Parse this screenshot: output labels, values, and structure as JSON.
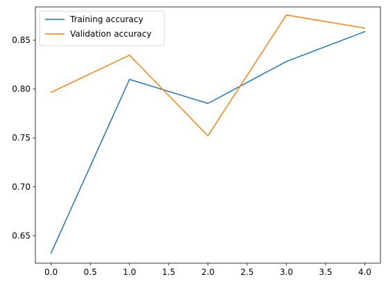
{
  "chart_data": {
    "type": "line",
    "title": "",
    "xlabel": "",
    "ylabel": "",
    "x": [
      0,
      1,
      2,
      3,
      4
    ],
    "xlim": [
      -0.2,
      4.2
    ],
    "ylim": [
      0.622,
      0.884
    ],
    "xticks": [
      0.0,
      0.5,
      1.0,
      1.5,
      2.0,
      2.5,
      3.0,
      3.5,
      4.0
    ],
    "yticks": [
      0.65,
      0.7,
      0.75,
      0.8,
      0.85
    ],
    "xtick_labels": [
      "0.0",
      "0.5",
      "1.0",
      "1.5",
      "2.0",
      "2.5",
      "3.0",
      "3.5",
      "4.0"
    ],
    "ytick_labels": [
      "0.65",
      "0.70",
      "0.75",
      "0.80",
      "0.85"
    ],
    "grid": false,
    "legend_position": "top-left",
    "series": [
      {
        "name": "Training accuracy",
        "color": "#1f77b4",
        "values": [
          0.6323,
          0.8099,
          0.7853,
          0.8282,
          0.8587
        ]
      },
      {
        "name": "Validation accuracy",
        "color": "#ff7f0e",
        "values": [
          0.7967,
          0.8347,
          0.7522,
          0.8758,
          0.8624
        ]
      }
    ]
  }
}
